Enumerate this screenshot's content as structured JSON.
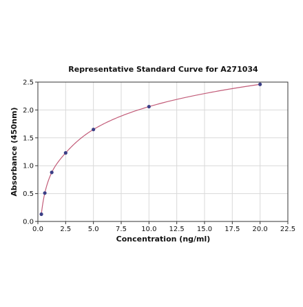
{
  "chart_data": {
    "type": "scatter",
    "title": "Representative Standard Curve for A271034",
    "xlabel": "Concentration (ng/ml)",
    "ylabel": "Absorbance (450nm)",
    "xlim": [
      0,
      22.5
    ],
    "ylim": [
      0,
      2.5
    ],
    "x_ticks": [
      "0.0",
      "2.5",
      "5.0",
      "7.5",
      "10.0",
      "12.5",
      "15.0",
      "17.5",
      "20.0",
      "22.5"
    ],
    "y_ticks": [
      "0.0",
      "0.5",
      "1.0",
      "1.5",
      "2.0",
      "2.5"
    ],
    "grid": true,
    "series": [
      {
        "x": [
          0.313,
          0.625,
          1.25,
          2.5,
          5.0,
          10.0,
          20.0
        ],
        "y": [
          0.13,
          0.51,
          0.88,
          1.23,
          1.65,
          2.06,
          2.46
        ],
        "marker_color": "#3b3f86",
        "fit": "curve",
        "curve_color": "#c25b78"
      }
    ]
  }
}
